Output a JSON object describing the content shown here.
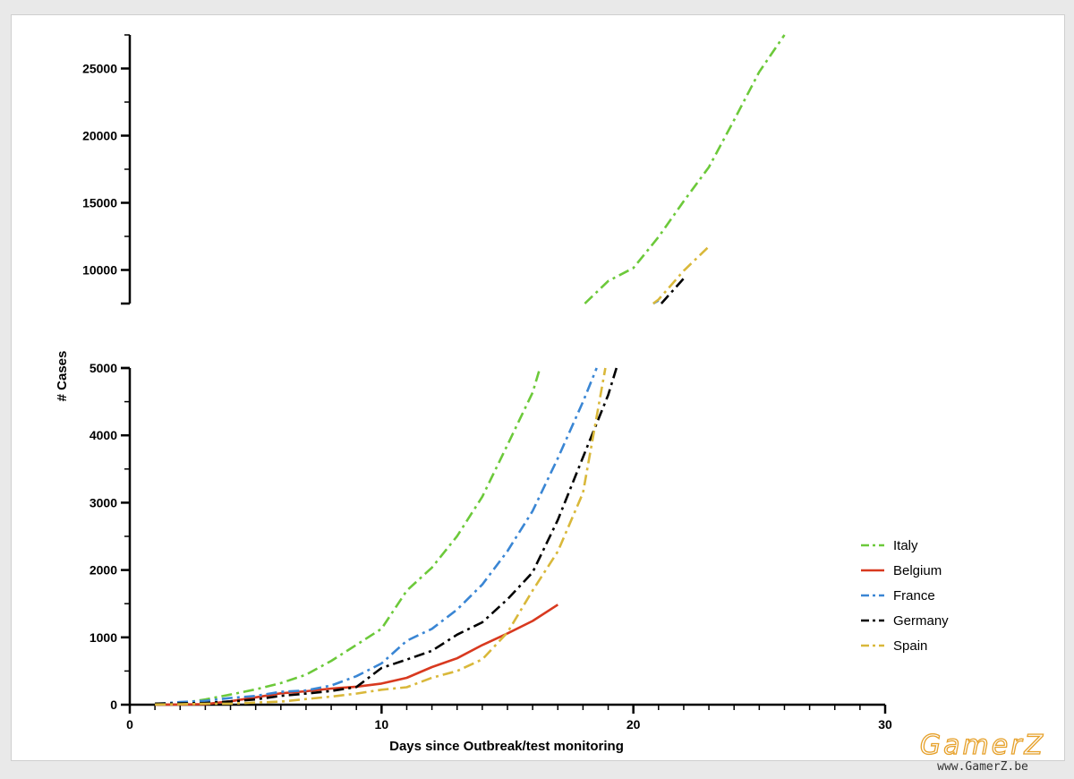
{
  "chart_data": {
    "type": "line",
    "xlabel": "Days since Outbreak/test monitoring",
    "ylabel": "# Cases",
    "xlim": [
      0,
      30
    ],
    "x_ticks": [
      "0",
      "10",
      "20",
      "30"
    ],
    "y_axis_break": true,
    "ylim_lower": [
      0,
      5000
    ],
    "ylim_upper": [
      7500,
      27500
    ],
    "y_ticks_lower": [
      "0",
      "1000",
      "2000",
      "3000",
      "4000",
      "5000"
    ],
    "y_ticks_upper": [
      "10000",
      "15000",
      "20000",
      "25000"
    ],
    "legend_position": "bottom-right",
    "grid": false,
    "series": [
      {
        "name": "Italy",
        "color": "#6cc93a",
        "dash": "dash-dot",
        "points": [
          [
            1,
            3
          ],
          [
            2,
            20
          ],
          [
            3,
            79
          ],
          [
            4,
            150
          ],
          [
            5,
            227
          ],
          [
            6,
            320
          ],
          [
            7,
            445
          ],
          [
            8,
            650
          ],
          [
            9,
            888
          ],
          [
            10,
            1128
          ],
          [
            11,
            1694
          ],
          [
            12,
            2036
          ],
          [
            13,
            2502
          ],
          [
            14,
            3089
          ],
          [
            15,
            3858
          ],
          [
            16,
            4636
          ],
          [
            17,
            5883
          ],
          [
            18,
            7375
          ],
          [
            19,
            9172
          ],
          [
            20,
            10149
          ],
          [
            21,
            12462
          ],
          [
            22,
            15113
          ],
          [
            23,
            17660
          ],
          [
            24,
            21157
          ],
          [
            25,
            24747
          ],
          [
            26,
            27980
          ]
        ]
      },
      {
        "name": "Belgium",
        "color": "#d8391f",
        "dash": "solid",
        "points": [
          [
            1,
            1
          ],
          [
            2,
            2
          ],
          [
            3,
            8
          ],
          [
            4,
            50
          ],
          [
            5,
            109
          ],
          [
            6,
            169
          ],
          [
            7,
            200
          ],
          [
            8,
            239
          ],
          [
            9,
            267
          ],
          [
            10,
            314
          ],
          [
            11,
            399
          ],
          [
            12,
            559
          ],
          [
            13,
            689
          ],
          [
            14,
            886
          ],
          [
            15,
            1058
          ],
          [
            16,
            1243
          ],
          [
            17,
            1486
          ]
        ]
      },
      {
        "name": "France",
        "color": "#3a86d4",
        "dash": "dash-dot",
        "points": [
          [
            1,
            12
          ],
          [
            2,
            38
          ],
          [
            3,
            57
          ],
          [
            4,
            100
          ],
          [
            5,
            130
          ],
          [
            6,
            191
          ],
          [
            7,
            212
          ],
          [
            8,
            285
          ],
          [
            9,
            423
          ],
          [
            10,
            613
          ],
          [
            11,
            949
          ],
          [
            12,
            1126
          ],
          [
            13,
            1412
          ],
          [
            14,
            1784
          ],
          [
            15,
            2281
          ],
          [
            16,
            2876
          ],
          [
            17,
            3661
          ],
          [
            18,
            4499
          ],
          [
            19,
            5423
          ],
          [
            20,
            6633
          ],
          [
            21,
            7730
          ]
        ]
      },
      {
        "name": "Germany",
        "color": "#000000",
        "dash": "dash-dot",
        "points": [
          [
            1,
            16
          ],
          [
            2,
            18
          ],
          [
            3,
            26
          ],
          [
            4,
            48
          ],
          [
            5,
            79
          ],
          [
            6,
            130
          ],
          [
            7,
            165
          ],
          [
            8,
            203
          ],
          [
            9,
            262
          ],
          [
            10,
            545
          ],
          [
            11,
            670
          ],
          [
            12,
            800
          ],
          [
            13,
            1040
          ],
          [
            14,
            1224
          ],
          [
            15,
            1565
          ],
          [
            16,
            1966
          ],
          [
            17,
            2745
          ],
          [
            18,
            3675
          ],
          [
            19,
            4599
          ],
          [
            20,
            5813
          ],
          [
            21,
            7272
          ],
          [
            22,
            9367
          ]
        ]
      },
      {
        "name": "Spain",
        "color": "#d9b83a",
        "dash": "dash-dot",
        "points": [
          [
            1,
            2
          ],
          [
            2,
            6
          ],
          [
            3,
            13
          ],
          [
            4,
            15
          ],
          [
            5,
            32
          ],
          [
            6,
            45
          ],
          [
            7,
            84
          ],
          [
            8,
            120
          ],
          [
            9,
            165
          ],
          [
            10,
            222
          ],
          [
            11,
            259
          ],
          [
            12,
            400
          ],
          [
            13,
            500
          ],
          [
            14,
            673
          ],
          [
            15,
            1073
          ],
          [
            16,
            1695
          ],
          [
            17,
            2277
          ],
          [
            18,
            3146
          ],
          [
            19,
            5232
          ],
          [
            20,
            6391
          ],
          [
            21,
            7798
          ],
          [
            22,
            9942
          ],
          [
            23,
            11748
          ]
        ]
      }
    ]
  },
  "watermark": {
    "name": "GamerZ",
    "url": "www.GamerZ.be"
  }
}
